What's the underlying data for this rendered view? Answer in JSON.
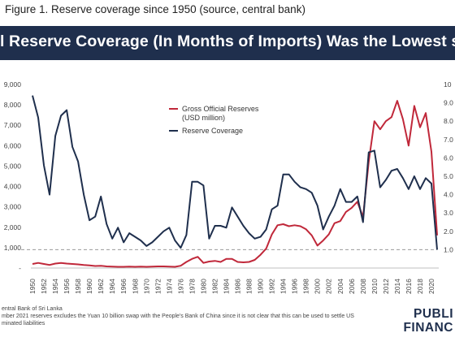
{
  "figure_title": "Figure 1.  Reserve coverage since 1950 (source, central bank)",
  "banner_title": "l Reserve Coverage (In Months of Imports) Was the Lowest since",
  "footer": {
    "source": "entral Bank of Sri Lanka",
    "note_1": "mber 2021 reserves excludes the Yuan 10 billion swap with the People's Bank of China since it is not clear that this can be used to settle US",
    "note_2": "minated liabilities"
  },
  "logo": {
    "line1": "PUBLI",
    "line2": "FINANC"
  },
  "chart_data": {
    "type": "line",
    "title": "",
    "x": [
      1950,
      1951,
      1952,
      1953,
      1954,
      1955,
      1956,
      1957,
      1958,
      1959,
      1960,
      1961,
      1962,
      1963,
      1964,
      1965,
      1966,
      1967,
      1968,
      1969,
      1970,
      1971,
      1972,
      1973,
      1974,
      1975,
      1976,
      1977,
      1978,
      1979,
      1980,
      1981,
      1982,
      1983,
      1984,
      1985,
      1986,
      1987,
      1988,
      1989,
      1990,
      1991,
      1992,
      1993,
      1994,
      1995,
      1996,
      1997,
      1998,
      1999,
      2000,
      2001,
      2002,
      2003,
      2004,
      2005,
      2006,
      2007,
      2008,
      2009,
      2010,
      2011,
      2012,
      2013,
      2014,
      2015,
      2016,
      2017,
      2018,
      2019,
      2020,
      2021
    ],
    "x_tick_labels": [
      "1950",
      "1952",
      "1954",
      "1956",
      "1958",
      "1960",
      "1962",
      "1964",
      "1966",
      "1968",
      "1970",
      "1972",
      "1974",
      "1976",
      "1978",
      "1980",
      "1982",
      "1984",
      "1986",
      "1988",
      "1990",
      "1992",
      "1994",
      "1996",
      "1998",
      "2000",
      "2002",
      "2004",
      "2006",
      "2008",
      "2010",
      "2012",
      "2014",
      "2016",
      "2018",
      "2020"
    ],
    "left_axis": {
      "ylim": [
        0,
        9000
      ],
      "tick_labels": [
        "-",
        "1,000",
        "2,000",
        "3,000",
        "4,000",
        "5,000",
        "6,000",
        "7,000",
        "8,000",
        "9,000"
      ]
    },
    "right_axis": {
      "ylim": [
        0,
        10
      ],
      "tick_labels": [
        "1.0",
        "2.0",
        "3.0",
        "4.0",
        "5.0",
        "6.0",
        "7.0",
        "8.0",
        "9.0",
        "10"
      ]
    },
    "reference_line": {
      "y": 1.0,
      "axis": "right",
      "style": "dashed"
    },
    "legend": {
      "placement": "top-right"
    },
    "series": [
      {
        "name": "Gross Official Reserves (USD million)",
        "axis": "left",
        "color": "#c0283a",
        "values": [
          200,
          250,
          200,
          150,
          220,
          250,
          220,
          200,
          180,
          150,
          130,
          100,
          110,
          80,
          70,
          60,
          60,
          70,
          60,
          70,
          60,
          70,
          80,
          80,
          70,
          60,
          110,
          300,
          450,
          550,
          250,
          320,
          350,
          300,
          450,
          450,
          300,
          280,
          300,
          400,
          650,
          950,
          1650,
          2100,
          2150,
          2050,
          2100,
          2050,
          1900,
          1600,
          1100,
          1350,
          1650,
          2200,
          2300,
          2750,
          2950,
          3250,
          2500,
          5200,
          7200,
          6800,
          7200,
          7400,
          8200,
          7300,
          6000,
          7950,
          6900,
          7600,
          5700,
          1600
        ]
      },
      {
        "name": "Reserve Coverage",
        "axis": "right",
        "color": "#1f2f4d",
        "values": [
          9.4,
          8.2,
          5.6,
          4.0,
          7.2,
          8.3,
          8.6,
          6.6,
          5.8,
          4.0,
          2.6,
          2.8,
          3.9,
          2.4,
          1.6,
          2.2,
          1.4,
          1.9,
          1.7,
          1.5,
          1.2,
          1.4,
          1.7,
          2.0,
          2.2,
          1.5,
          1.1,
          1.8,
          4.7,
          4.7,
          4.5,
          1.6,
          2.3,
          2.3,
          2.2,
          3.3,
          2.8,
          2.3,
          1.9,
          1.6,
          1.7,
          2.1,
          3.2,
          3.4,
          5.1,
          5.1,
          4.7,
          4.4,
          4.3,
          4.1,
          3.4,
          2.1,
          2.8,
          3.4,
          4.3,
          3.6,
          3.6,
          3.9,
          2.5,
          6.3,
          6.4,
          4.4,
          4.8,
          5.3,
          5.4,
          4.9,
          4.3,
          5.0,
          4.3,
          4.9,
          4.6,
          1.0
        ]
      }
    ]
  }
}
